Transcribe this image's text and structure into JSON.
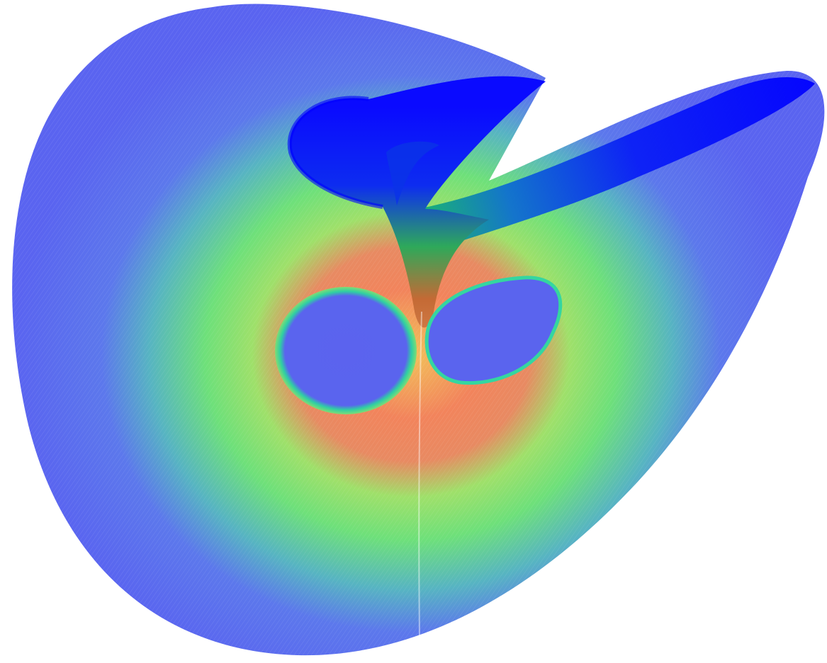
{
  "figure": {
    "colors": {
      "background": "#ffffff",
      "outer": "#5c6cf0",
      "mid": "#6ee07a",
      "hot": "#f07f5a",
      "core": "#1a1aff",
      "hole": "#5a64ee",
      "hole_rim": "#30d0a0"
    }
  }
}
